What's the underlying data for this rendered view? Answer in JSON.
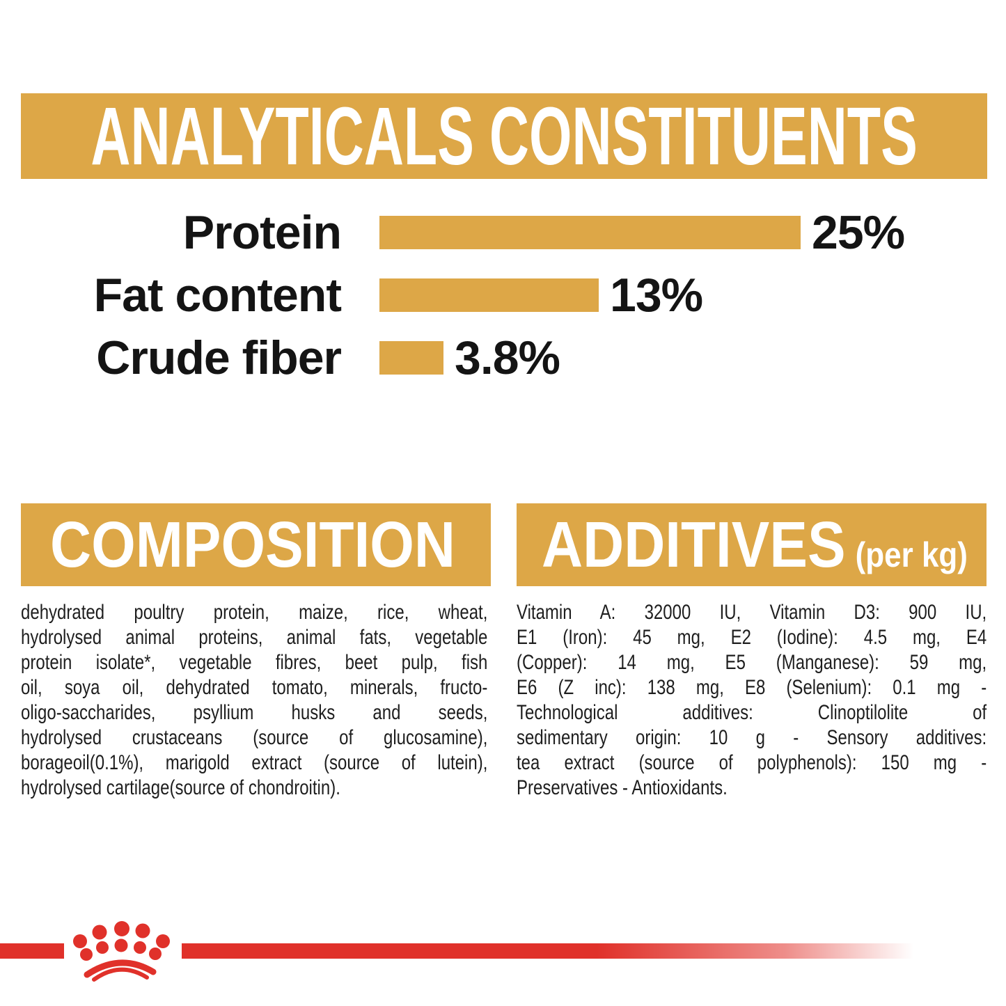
{
  "colors": {
    "accent_gold": "#DDA747",
    "brand_red": "#E0312A",
    "heading_text": "#FFFFFF",
    "body_text": "#1E1E1E"
  },
  "chart_data": {
    "type": "bar",
    "orientation": "horizontal",
    "title": "ANALYTICALS CONSTITUENTS",
    "categories": [
      "Protein",
      "Fat content",
      "Crude fiber"
    ],
    "values": [
      25,
      13,
      3.8
    ],
    "value_labels": [
      "25%",
      "13%",
      "3.8%"
    ],
    "unit": "%",
    "xlim": [
      0,
      29
    ],
    "grid": false,
    "legend": false,
    "bar_color": "#DDA747"
  },
  "composition": {
    "title": "COMPOSITION",
    "lines": [
      "dehydrated poultry protein, maize, rice, wheat,",
      "hydrolysed animal proteins, animal fats, vegetable",
      "protein isolate*, vegetable fibres, beet pulp, fish",
      "oil, soya oil, dehydrated tomato, minerals, fructo-",
      "oligo-saccharides, psyllium husks and seeds,",
      "hydrolysed crustaceans (source of glucosamine),",
      "borageoil(0.1%), marigold extract (source of lutein),",
      "hydrolysed cartilage(source of chondroitin)."
    ]
  },
  "additives": {
    "title": "ADDITIVES",
    "title_suffix": "(per kg)",
    "lines": [
      "Vitamin A: 32000 IU, Vitamin D3: 900 IU,",
      "E1 (Iron): 45 mg, E2 (Iodine): 4.5 mg, E4",
      "(Copper): 14 mg, E5 (Manganese): 59 mg,",
      "E6 (Z inc): 138 mg, E8 (Selenium): 0.1 mg -",
      "Technological additives: Clinoptilolite of",
      "sedimentary origin: 10 g - Sensory additives:",
      "tea extract (source of polyphenols): 150 mg -",
      "Preservatives - Antioxidants."
    ]
  },
  "footer": {
    "logo": "royal-canin-crown"
  }
}
